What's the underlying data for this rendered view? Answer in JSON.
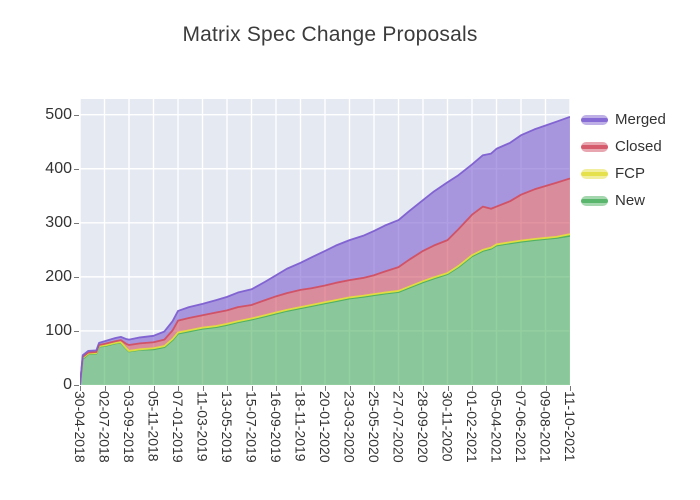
{
  "title": "Matrix Spec Change Proposals",
  "colors": {
    "plot_background": "#e5e9f2",
    "grid": "#ffffff",
    "tick_text": "#333333",
    "title_text": "#3c3c3c",
    "merged": "#7d5fd0",
    "closed": "#d14f62",
    "fcp": "#e3de3d",
    "new": "#4cb060"
  },
  "legend": {
    "position": "right-top-outside",
    "items": [
      {
        "label": "Merged",
        "color": "#7d5fd0"
      },
      {
        "label": "Closed",
        "color": "#d14f62"
      },
      {
        "label": "FCP",
        "color": "#e3de3d"
      },
      {
        "label": "New",
        "color": "#4cb060"
      }
    ]
  },
  "chart_data": {
    "type": "area",
    "stacked": true,
    "title": "Matrix Spec Change Proposals",
    "xlabel": "",
    "ylabel": "",
    "grid": true,
    "ylim": [
      0,
      529
    ],
    "yticks": [
      0,
      100,
      200,
      300,
      400,
      500
    ],
    "x_unit": "weeks-since-start",
    "x_range_weeks": [
      0,
      180
    ],
    "x_tick_weeks": [
      0,
      9,
      18,
      27,
      36,
      45,
      54,
      63,
      72,
      81,
      90,
      99,
      108,
      117,
      126,
      135,
      144,
      153,
      162,
      171,
      180
    ],
    "x_tick_labels": [
      "30-04-2018",
      "02-07-2018",
      "03-09-2018",
      "05-11-2018",
      "07-01-2019",
      "11-03-2019",
      "13-05-2019",
      "15-07-2019",
      "16-09-2019",
      "18-11-2019",
      "20-01-2020",
      "23-03-2020",
      "25-05-2020",
      "27-07-2020",
      "28-09-2020",
      "30-11-2020",
      "01-02-2021",
      "05-04-2021",
      "07-06-2021",
      "09-08-2021",
      "11-10-2021"
    ],
    "series_order_bottom_to_top": [
      "New",
      "FCP",
      "Closed",
      "Merged"
    ],
    "fill_opacity": 0.6,
    "points": [
      {
        "w": 0,
        "New": 0,
        "FCP": 0,
        "Closed": 0,
        "Merged": 0
      },
      {
        "w": 1,
        "New": 48,
        "FCP": 2,
        "Closed": 2,
        "Merged": 3
      },
      {
        "w": 3,
        "New": 57,
        "FCP": 1,
        "Closed": 2,
        "Merged": 3
      },
      {
        "w": 6,
        "New": 58,
        "FCP": 1,
        "Closed": 2,
        "Merged": 3
      },
      {
        "w": 7,
        "New": 71,
        "FCP": 1,
        "Closed": 2,
        "Merged": 4
      },
      {
        "w": 9,
        "New": 72,
        "FCP": 1,
        "Closed": 3,
        "Merged": 5
      },
      {
        "w": 13,
        "New": 77,
        "FCP": 1,
        "Closed": 3,
        "Merged": 6
      },
      {
        "w": 15,
        "New": 78,
        "FCP": 1,
        "Closed": 4,
        "Merged": 6
      },
      {
        "w": 17,
        "New": 67,
        "FCP": 1,
        "Closed": 8,
        "Merged": 9
      },
      {
        "w": 18,
        "New": 62,
        "FCP": 1,
        "Closed": 11,
        "Merged": 10
      },
      {
        "w": 22,
        "New": 65,
        "FCP": 1,
        "Closed": 11,
        "Merged": 11
      },
      {
        "w": 27,
        "New": 66,
        "FCP": 2,
        "Closed": 11,
        "Merged": 12
      },
      {
        "w": 31,
        "New": 70,
        "FCP": 2,
        "Closed": 12,
        "Merged": 15
      },
      {
        "w": 34,
        "New": 83,
        "FCP": 2,
        "Closed": 16,
        "Merged": 17
      },
      {
        "w": 36,
        "New": 95,
        "FCP": 2,
        "Closed": 22,
        "Merged": 18
      },
      {
        "w": 40,
        "New": 99,
        "FCP": 2,
        "Closed": 23,
        "Merged": 20
      },
      {
        "w": 45,
        "New": 104,
        "FCP": 2,
        "Closed": 23,
        "Merged": 21
      },
      {
        "w": 50,
        "New": 107,
        "FCP": 2,
        "Closed": 25,
        "Merged": 23
      },
      {
        "w": 54,
        "New": 111,
        "FCP": 2,
        "Closed": 25,
        "Merged": 25
      },
      {
        "w": 58,
        "New": 116,
        "FCP": 2,
        "Closed": 26,
        "Merged": 27
      },
      {
        "w": 63,
        "New": 121,
        "FCP": 2,
        "Closed": 25,
        "Merged": 29
      },
      {
        "w": 68,
        "New": 127,
        "FCP": 2,
        "Closed": 28,
        "Merged": 34
      },
      {
        "w": 72,
        "New": 132,
        "FCP": 2,
        "Closed": 30,
        "Merged": 39
      },
      {
        "w": 76,
        "New": 137,
        "FCP": 2,
        "Closed": 31,
        "Merged": 45
      },
      {
        "w": 81,
        "New": 142,
        "FCP": 2,
        "Closed": 32,
        "Merged": 50
      },
      {
        "w": 85,
        "New": 146,
        "FCP": 2,
        "Closed": 31,
        "Merged": 57
      },
      {
        "w": 90,
        "New": 151,
        "FCP": 2,
        "Closed": 31,
        "Merged": 64
      },
      {
        "w": 94,
        "New": 155,
        "FCP": 2,
        "Closed": 32,
        "Merged": 69
      },
      {
        "w": 99,
        "New": 160,
        "FCP": 2,
        "Closed": 32,
        "Merged": 74
      },
      {
        "w": 104,
        "New": 163,
        "FCP": 2,
        "Closed": 33,
        "Merged": 78
      },
      {
        "w": 108,
        "New": 166,
        "FCP": 2,
        "Closed": 35,
        "Merged": 82
      },
      {
        "w": 112,
        "New": 169,
        "FCP": 2,
        "Closed": 39,
        "Merged": 85
      },
      {
        "w": 117,
        "New": 172,
        "FCP": 2,
        "Closed": 44,
        "Merged": 87
      },
      {
        "w": 121,
        "New": 180,
        "FCP": 2,
        "Closed": 50,
        "Merged": 90
      },
      {
        "w": 126,
        "New": 190,
        "FCP": 2,
        "Closed": 56,
        "Merged": 94
      },
      {
        "w": 130,
        "New": 197,
        "FCP": 2,
        "Closed": 59,
        "Merged": 100
      },
      {
        "w": 135,
        "New": 205,
        "FCP": 2,
        "Closed": 61,
        "Merged": 107
      },
      {
        "w": 139,
        "New": 218,
        "FCP": 2,
        "Closed": 68,
        "Merged": 100
      },
      {
        "w": 144,
        "New": 238,
        "FCP": 2,
        "Closed": 75,
        "Merged": 93
      },
      {
        "w": 148,
        "New": 248,
        "FCP": 2,
        "Closed": 80,
        "Merged": 95
      },
      {
        "w": 151,
        "New": 252,
        "FCP": 2,
        "Closed": 72,
        "Merged": 102
      },
      {
        "w": 153,
        "New": 258,
        "FCP": 2,
        "Closed": 70,
        "Merged": 107
      },
      {
        "w": 158,
        "New": 262,
        "FCP": 2,
        "Closed": 76,
        "Merged": 108
      },
      {
        "w": 162,
        "New": 265,
        "FCP": 2,
        "Closed": 85,
        "Merged": 110
      },
      {
        "w": 167,
        "New": 268,
        "FCP": 2,
        "Closed": 92,
        "Merged": 111
      },
      {
        "w": 171,
        "New": 270,
        "FCP": 2,
        "Closed": 96,
        "Merged": 112
      },
      {
        "w": 175,
        "New": 272,
        "FCP": 2,
        "Closed": 100,
        "Merged": 113
      },
      {
        "w": 180,
        "New": 276,
        "FCP": 3,
        "Closed": 103,
        "Merged": 114
      }
    ]
  }
}
